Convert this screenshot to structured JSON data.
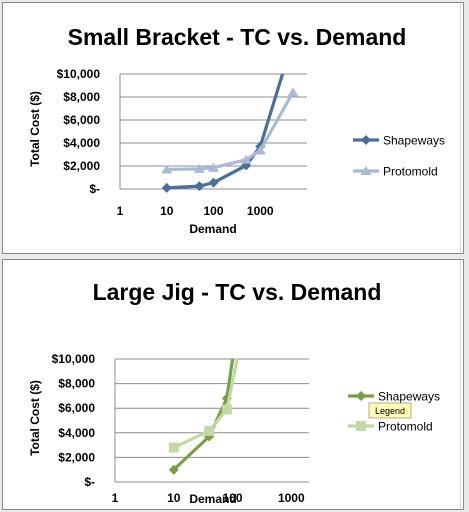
{
  "chart_data": [
    {
      "type": "line",
      "title": "Small Bracket - TC vs. Demand",
      "xlabel": "Demand",
      "ylabel": "Total Cost ($)",
      "x_scale": "log",
      "xlim": [
        1,
        5000
      ],
      "ylim": [
        0,
        10000
      ],
      "x_ticks": [
        1,
        10,
        100,
        1000
      ],
      "x_tick_labels": [
        "1",
        "10",
        "100",
        "1000"
      ],
      "y_ticks": [
        0,
        2000,
        4000,
        6000,
        8000,
        10000
      ],
      "y_tick_labels": [
        "$-",
        "$2,000",
        "$4,000",
        "$6,000",
        "$8,000",
        "$10,000"
      ],
      "grid": true,
      "legend_position": "right",
      "series": [
        {
          "name": "Shapeways",
          "color": "#4a6f98",
          "marker": "diamond",
          "x": [
            10,
            50,
            100,
            500,
            1000,
            3000
          ],
          "y": [
            100,
            250,
            550,
            2050,
            3700,
            10000
          ]
        },
        {
          "name": "Protomold",
          "color": "#a9bad6",
          "marker": "triangle",
          "x": [
            10,
            50,
            100,
            500,
            1000,
            5000
          ],
          "y": [
            1700,
            1750,
            1850,
            2550,
            3350,
            8400
          ]
        }
      ]
    },
    {
      "type": "line",
      "title": "Large Jig - TC vs. Demand",
      "xlabel": "Demand",
      "ylabel": "Total Cost ($)",
      "x_scale": "log",
      "xlim": [
        1,
        1000
      ],
      "ylim": [
        0,
        10000
      ],
      "x_ticks": [
        1,
        10,
        100,
        1000
      ],
      "x_tick_labels": [
        "1",
        "10",
        "100",
        "1000"
      ],
      "y_ticks": [
        0,
        2000,
        4000,
        6000,
        8000,
        10000
      ],
      "y_tick_labels": [
        "$-",
        "$2,000",
        "$4,000",
        "$6,000",
        "$8,000",
        "$10,000"
      ],
      "grid": true,
      "legend_position": "right",
      "tooltip": "Legend",
      "series": [
        {
          "name": "Shapeways",
          "color": "#77a043",
          "marker": "diamond",
          "x": [
            10,
            40,
            80,
            100
          ],
          "y": [
            1000,
            3700,
            6800,
            10000
          ]
        },
        {
          "name": "Protomold",
          "color": "#c3d9a4",
          "marker": "square",
          "x": [
            10,
            40,
            80,
            120
          ],
          "y": [
            2800,
            4150,
            5900,
            10000
          ]
        }
      ]
    }
  ]
}
